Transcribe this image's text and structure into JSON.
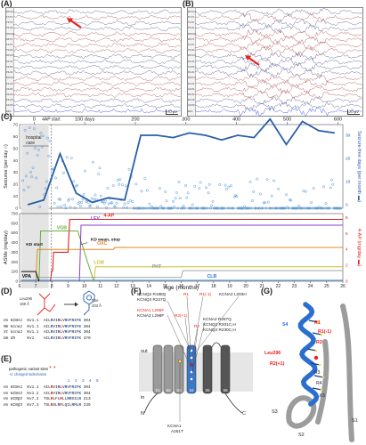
{
  "panels": {
    "A": {
      "label": "(A)",
      "scale": "70 μV"
    },
    "B": {
      "label": "(B)",
      "scale": "70 μV"
    },
    "C": {
      "label": "(C)"
    },
    "D": {
      "label": "(D)"
    },
    "E": {
      "label": "(E)"
    },
    "F": {
      "label": "(F)"
    },
    "G": {
      "label": "(G)"
    }
  },
  "eeg_channels": [
    "FP1-F7",
    "F7-T3",
    "T3-T5",
    "T5-O1",
    "FP2-F8",
    "F8-T4",
    "T4-T6",
    "T6-O2",
    "FP1-F3",
    "F3-C3",
    "C3-P3",
    "P3-O1",
    "FP2-F4",
    "F4-C4",
    "C4-P4",
    "P4-O2",
    "FZ-CZ",
    "CZ-PZ",
    "EKG"
  ],
  "chart_data": [
    {
      "type": "scatter",
      "title": "",
      "top_axis": {
        "ticks": [
          "0",
          "100 days",
          "200",
          "300",
          "400",
          "500",
          "600"
        ],
        "marker": "4AP start"
      },
      "ylabel_left": "Seizures (per day",
      "ylabel_right": "Seizure-free days (per month",
      "left_ticks": [
        "0",
        "10",
        "20",
        "30",
        "40",
        "50",
        "60",
        "70"
      ],
      "right_ticks": [
        "0",
        "10",
        "20",
        "30"
      ],
      "annotation": "hospital care",
      "monthly_seizure_free_line": [
        {
          "x": 6.5,
          "y": 0
        },
        {
          "x": 7.5,
          "y": 2
        },
        {
          "x": 8.5,
          "y": 22
        },
        {
          "x": 9.5,
          "y": 5
        },
        {
          "x": 10.5,
          "y": 1
        },
        {
          "x": 11.5,
          "y": 3
        },
        {
          "x": 12.5,
          "y": 2
        },
        {
          "x": 13.5,
          "y": 30
        },
        {
          "x": 14.5,
          "y": 30
        },
        {
          "x": 15.5,
          "y": 29
        },
        {
          "x": 16.5,
          "y": 31
        },
        {
          "x": 17.5,
          "y": 30
        },
        {
          "x": 18.5,
          "y": 28
        },
        {
          "x": 19.5,
          "y": 30
        },
        {
          "x": 20.5,
          "y": 29
        },
        {
          "x": 21.5,
          "y": 37
        },
        {
          "x": 22.5,
          "y": 26
        },
        {
          "x": 23.5,
          "y": 36
        },
        {
          "x": 24.5,
          "y": 32
        },
        {
          "x": 25.5,
          "y": 31
        }
      ]
    },
    {
      "type": "line",
      "title": "",
      "xlabel": "Age (months)",
      "ylabel_left": "ASMs (mg/day)",
      "ylabel_right": "4-AP (mg/day",
      "x_ticks": [
        "6",
        "7",
        "8",
        "9",
        "10",
        "11",
        "12",
        "13",
        "14",
        "15",
        "16",
        "17",
        "18",
        "19",
        "20",
        "21",
        "22",
        "23",
        "24",
        "25",
        "26"
      ],
      "left_ticks": [
        "0",
        "100",
        "200",
        "300",
        "400",
        "500",
        "600",
        "700"
      ],
      "right_ticks": [
        "0",
        "2",
        "4",
        "6",
        "8"
      ],
      "series": [
        {
          "name": "4-AP",
          "color": "#e02020"
        },
        {
          "name": "VGB",
          "color": "#6ab03a"
        },
        {
          "name": "LEV",
          "color": "#8a3ccf"
        },
        {
          "name": "OXC",
          "color": "#e08a20"
        },
        {
          "name": "LCM",
          "color": "#c9c22a"
        },
        {
          "name": "PHT",
          "color": "#999999"
        },
        {
          "name": "CLB",
          "color": "#2a78d6"
        },
        {
          "name": "VPA",
          "color": "#111111"
        }
      ],
      "annotations": [
        "KD start",
        "KD wean, stop"
      ]
    }
  ],
  "panelD": {
    "left_residue": "Leu296",
    "left_vol": "168 Å",
    "right_residue": "Phe",
    "right_vol": "203 Å"
  },
  "seq_top": [
    {
      "sp": "Hs",
      "gene": "KCNA1",
      "sub": "Kv1.1",
      "seq": "AILRVIRLVRVFRIFK",
      "num": "304"
    },
    {
      "sp": "Mm",
      "gene": "Kcna1",
      "sub": "Kv1.1",
      "seq": "AILRVIRLVRVFRIFK",
      "num": "304"
    },
    {
      "sp": "Xt",
      "gene": "kcna1",
      "sub": "Kv1.1",
      "seq": "AILRVIRLVRVFRIFK",
      "num": "304"
    },
    {
      "sp": "Dm",
      "gene": "Sh",
      "sub": "Kv1",
      "seq": "AILRVIRLVRVFRIFK",
      "num": "370"
    }
  ],
  "panelE": {
    "legend1": "pathogenic variant sites",
    "legend2": "+1 charged sidechains",
    "charges": [
      "1",
      "2",
      "3",
      "4",
      "5"
    ]
  },
  "seq_bottom": [
    {
      "sp": "Hs",
      "gene": "KCNA1",
      "sub": "Kv1.1",
      "seq": "AILRVIRLVRVFRIFK",
      "num": "304"
    },
    {
      "sp": "Hs",
      "gene": "KCNA2",
      "sub": "Kv1.2",
      "seq": "AILRVIRLVRVFRIFK",
      "num": "304"
    },
    {
      "sp": "Hs",
      "gene": "KCNQ2",
      "sub": "Kv7.2",
      "seq": "TSLRLFLRLLRRSILR",
      "num": "213"
    },
    {
      "sp": "Hs",
      "gene": "KCNQ3",
      "sub": "Kv7.3",
      "seq": "TSLRSLRFLQILRMLR",
      "num": "239"
    }
  ],
  "panelF": {
    "labels_left": [
      "KCNQ2 R198Q",
      "KCNQ3 R227Q",
      "KCNA1 L296F",
      "KCNA2 L298F"
    ],
    "r1": "R1",
    "r1m": "R1(-1)",
    "r2": "R2",
    "r2p": "R2(+1)",
    "labels_right": [
      "KCNA2 L293H",
      "KCNA2 R297Q",
      "KCNQ2 R201C,H",
      "KCNQ3 R230C,H"
    ],
    "out": "out",
    "in": "in",
    "n": "N",
    "c": "C",
    "segments": [
      "S1",
      "S2",
      "S3",
      "S4",
      "S5",
      "S6"
    ],
    "bottom": [
      "KCNA1",
      "A261T"
    ]
  },
  "panelG": {
    "labels": [
      "S4",
      "R1",
      "R1(-1)",
      "R2",
      "Leu296",
      "R2(+1)",
      "R3",
      "R4",
      "K5",
      "S3",
      "S2",
      "S1"
    ]
  }
}
